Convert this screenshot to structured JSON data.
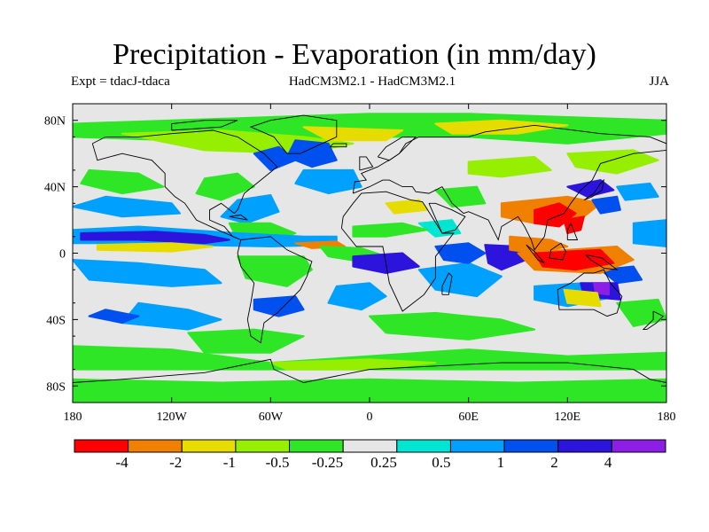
{
  "title": "Precipitation - Evaporation (in mm/day)",
  "subtitle_left": "Expt = tdacJ-tdaca",
  "subtitle_center": "HadCM3M2.1 - HadCM3M2.1",
  "subtitle_right": "JJA",
  "y_ticks": [
    "80N",
    "40N",
    "0",
    "40S",
    "80S"
  ],
  "x_ticks": [
    "180",
    "120W",
    "60W",
    "0",
    "60E",
    "120E",
    "180"
  ],
  "colorbar": {
    "colors": [
      "#ff0000",
      "#f08000",
      "#e6dc00",
      "#96ee00",
      "#2ee626",
      "#e6e6e6",
      "#00e6d2",
      "#00a0ff",
      "#0050f0",
      "#2d14dc",
      "#8c1ee6"
    ],
    "labels": [
      "-4",
      "-2",
      "-1",
      "-0.5",
      "-0.25",
      "0.25",
      "0.5",
      "1",
      "2",
      "4"
    ]
  },
  "map": {
    "background": "#e6e6e6",
    "lon_range": [
      -180,
      180
    ],
    "lat_range": [
      -90,
      90
    ]
  }
}
